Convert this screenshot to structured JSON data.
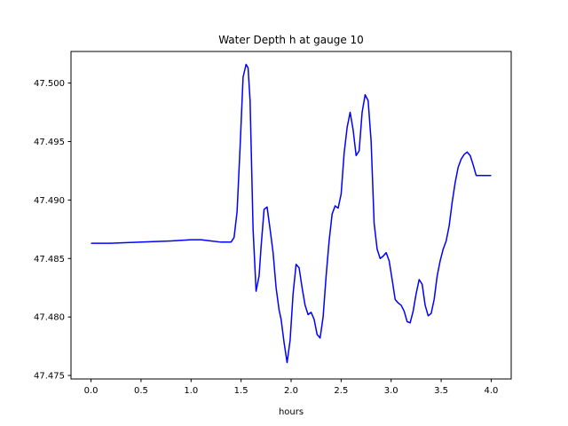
{
  "chart_data": {
    "type": "line",
    "title": "Water Depth h at gauge 10",
    "xlabel": "hours",
    "ylabel": "",
    "xlim": [
      -0.2,
      4.2
    ],
    "ylim": [
      47.4747,
      47.5027
    ],
    "grid": false,
    "x_ticks": [
      0.0,
      0.5,
      1.0,
      1.5,
      2.0,
      2.5,
      3.0,
      3.5,
      4.0
    ],
    "x_tick_labels": [
      "0.0",
      "0.5",
      "1.0",
      "1.5",
      "2.0",
      "2.5",
      "3.0",
      "3.5",
      "4.0"
    ],
    "y_ticks": [
      47.475,
      47.48,
      47.485,
      47.49,
      47.495,
      47.5
    ],
    "y_tick_labels": [
      "47.475",
      "47.480",
      "47.485",
      "47.490",
      "47.495",
      "47.500"
    ],
    "series": [
      {
        "color": "#0000ff",
        "x": [
          0.0,
          0.2,
          0.5,
          0.8,
          1.0,
          1.1,
          1.2,
          1.3,
          1.4,
          1.43,
          1.46,
          1.49,
          1.52,
          1.55,
          1.57,
          1.59,
          1.62,
          1.65,
          1.68,
          1.7,
          1.73,
          1.76,
          1.79,
          1.82,
          1.85,
          1.88,
          1.9,
          1.93,
          1.96,
          1.99,
          2.02,
          2.05,
          2.08,
          2.11,
          2.14,
          2.17,
          2.2,
          2.23,
          2.26,
          2.29,
          2.32,
          2.35,
          2.38,
          2.41,
          2.44,
          2.47,
          2.5,
          2.53,
          2.56,
          2.59,
          2.62,
          2.65,
          2.68,
          2.71,
          2.74,
          2.77,
          2.8,
          2.83,
          2.86,
          2.89,
          2.92,
          2.95,
          2.98,
          3.01,
          3.04,
          3.07,
          3.1,
          3.13,
          3.16,
          3.19,
          3.22,
          3.25,
          3.28,
          3.31,
          3.34,
          3.37,
          3.4,
          3.43,
          3.46,
          3.49,
          3.52,
          3.55,
          3.58,
          3.61,
          3.64,
          3.67,
          3.7,
          3.73,
          3.76,
          3.79,
          3.82,
          3.85,
          3.88,
          3.91,
          3.94,
          3.97,
          4.0
        ],
        "y": [
          47.4863,
          47.4863,
          47.4864,
          47.4865,
          47.4866,
          47.4866,
          47.4865,
          47.4864,
          47.4864,
          47.4868,
          47.489,
          47.4945,
          47.5005,
          47.5016,
          47.5013,
          47.4985,
          47.4875,
          47.4822,
          47.4835,
          47.486,
          47.4892,
          47.4894,
          47.4875,
          47.4855,
          47.4825,
          47.4806,
          47.4798,
          47.4778,
          47.4761,
          47.478,
          47.482,
          47.4845,
          47.4842,
          47.4825,
          47.481,
          47.4802,
          47.4804,
          47.4798,
          47.4785,
          47.4782,
          47.48,
          47.4835,
          47.4865,
          47.4888,
          47.4895,
          47.4893,
          47.4905,
          47.494,
          47.4962,
          47.4975,
          47.496,
          47.4938,
          47.4942,
          47.4975,
          47.499,
          47.4985,
          47.495,
          47.488,
          47.4858,
          47.485,
          47.4852,
          47.4855,
          47.4848,
          47.4832,
          47.4815,
          47.4812,
          47.481,
          47.4805,
          47.4796,
          47.4795,
          47.4805,
          47.482,
          47.4832,
          47.4828,
          47.481,
          47.4801,
          47.4803,
          47.4815,
          47.4835,
          47.4848,
          47.4858,
          47.4865,
          47.4878,
          47.4898,
          47.4915,
          47.4928,
          47.4935,
          47.4939,
          47.4941,
          47.4938,
          47.493,
          47.4921,
          47.4921,
          47.4921,
          47.4921,
          47.4921,
          47.4921
        ]
      }
    ]
  }
}
